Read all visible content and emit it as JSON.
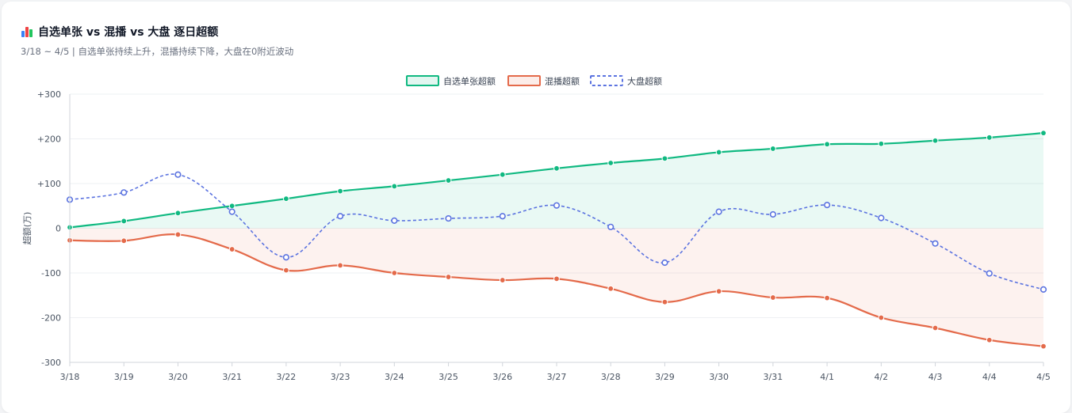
{
  "header": {
    "title": "自选单张 vs 混播 vs 大盘 逐日超额",
    "subtitle": "3/18 ~ 4/5 | 自选单张持续上升，混播持续下降，大盘在0附近波动",
    "icon": "bar-chart-icon"
  },
  "colors": {
    "series1": "#10b981",
    "series1_fill": "rgba(16,185,129,0.09)",
    "series2": "#e46a4a",
    "series2_fill": "rgba(228,106,74,0.09)",
    "series3": "#5b73e0",
    "grid": "#eef0f3",
    "axis": "#d1d5db"
  },
  "chart_data": {
    "type": "line",
    "categories": [
      "3/18",
      "3/19",
      "3/20",
      "3/21",
      "3/22",
      "3/23",
      "3/24",
      "3/25",
      "3/26",
      "3/27",
      "3/28",
      "3/29",
      "3/30",
      "3/31",
      "4/1",
      "4/2",
      "4/3",
      "4/4",
      "4/5"
    ],
    "series": [
      {
        "name": "自选单张超额",
        "style": "solid-filled",
        "values": [
          2,
          16,
          34,
          50,
          66,
          83,
          94,
          107,
          120,
          134,
          146,
          156,
          170,
          178,
          188,
          189,
          196,
          203,
          213
        ]
      },
      {
        "name": "混播超额",
        "style": "solid-filled",
        "values": [
          -27,
          -28,
          -14,
          -47,
          -94,
          -83,
          -100,
          -109,
          -116,
          -113,
          -135,
          -165,
          -141,
          -155,
          -156,
          -200,
          -223,
          -250,
          -264
        ]
      },
      {
        "name": "大盘超额",
        "style": "dashed",
        "values": [
          64,
          80,
          120,
          37,
          -65,
          27,
          17,
          22,
          27,
          51,
          3,
          -77,
          37,
          31,
          52,
          23,
          -34,
          -101,
          -137
        ]
      }
    ],
    "ylabel": "超额(万)",
    "ylim": [
      -300,
      300
    ],
    "yticks": [
      {
        "value": 300,
        "label": "+300"
      },
      {
        "value": 200,
        "label": "+200"
      },
      {
        "value": 100,
        "label": "+100"
      },
      {
        "value": 0,
        "label": "0"
      },
      {
        "value": -100,
        "label": "-100"
      },
      {
        "value": -200,
        "label": "-200"
      },
      {
        "value": -300,
        "label": "-300"
      }
    ],
    "legend_position": "top-center",
    "grid": true
  }
}
